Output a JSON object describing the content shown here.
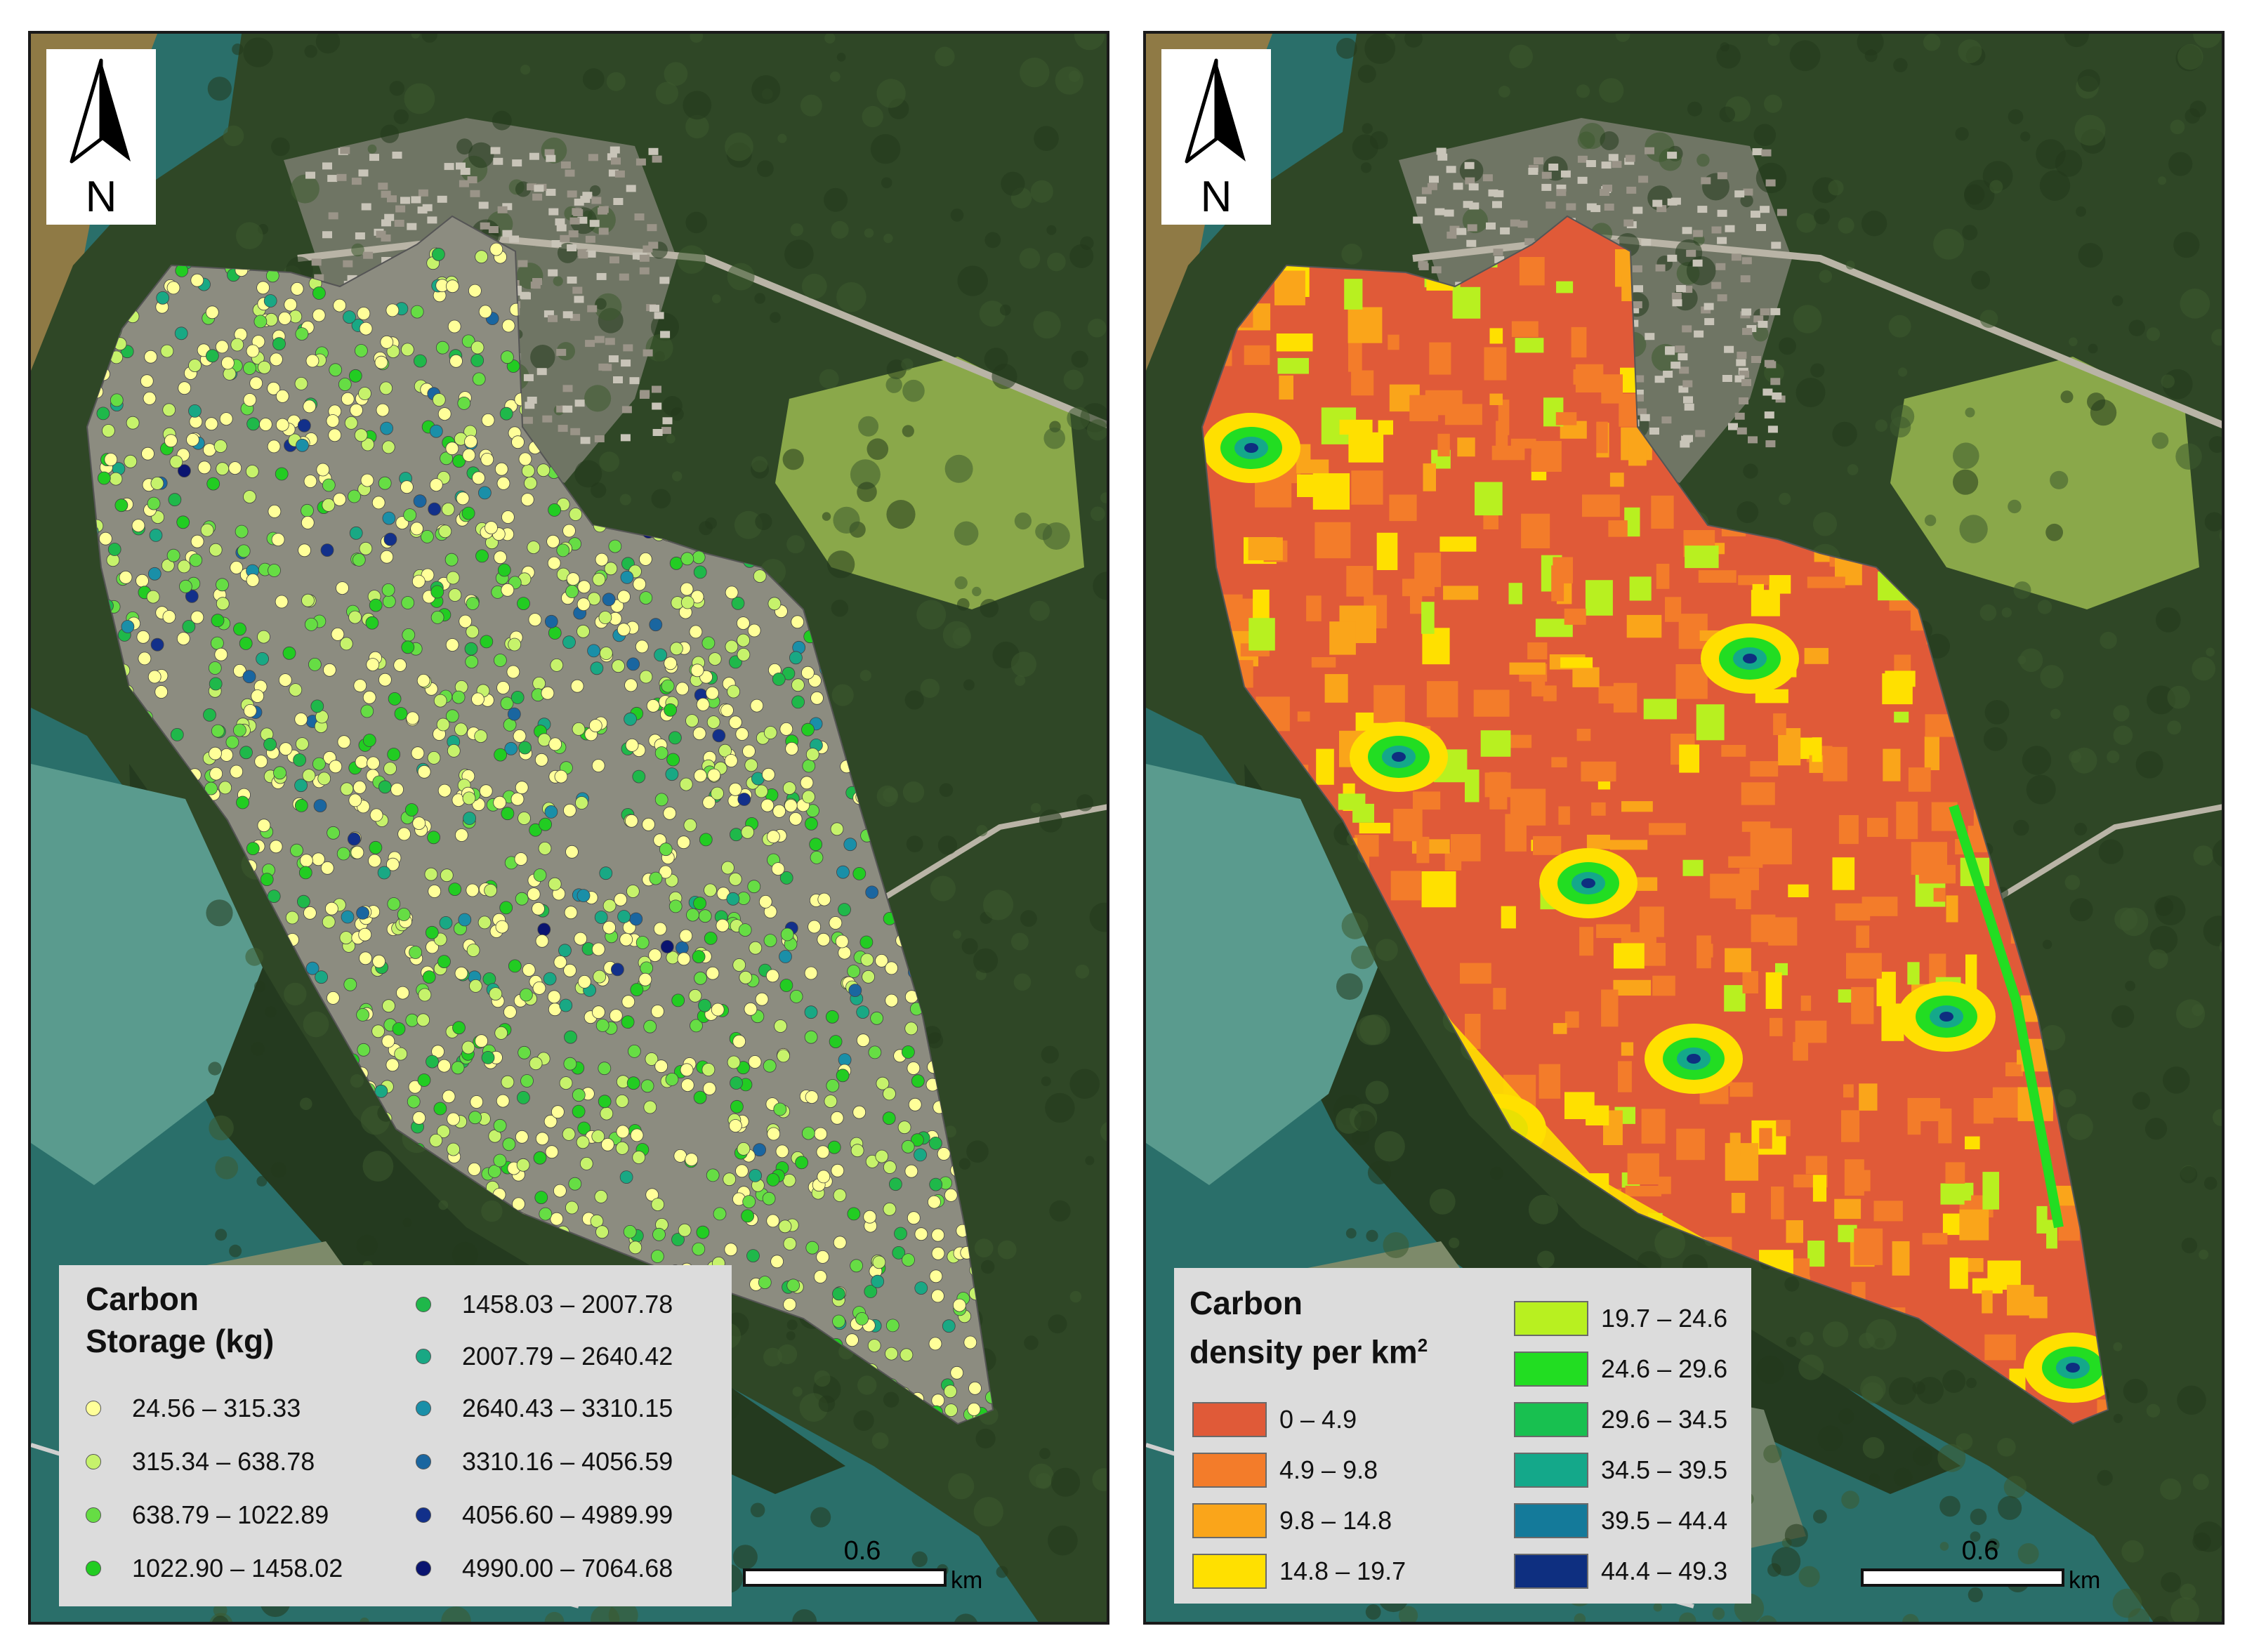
{
  "north_arrow": {
    "letter": "N"
  },
  "left_map": {
    "legend": {
      "title_line1": "Carbon",
      "title_line2": "Storage (kg)",
      "classes": [
        {
          "label": "24.56 – 315.33",
          "color": "#ffff99"
        },
        {
          "label": "315.34 – 638.78",
          "color": "#c6f26b"
        },
        {
          "label": "638.79 – 1022.89",
          "color": "#66dd44"
        },
        {
          "label": "1022.90 – 1458.02",
          "color": "#22cc22"
        },
        {
          "label": "1458.03 – 2007.78",
          "color": "#1fb84a"
        },
        {
          "label": "2007.79 – 2640.42",
          "color": "#19a884"
        },
        {
          "label": "2640.43 – 3310.15",
          "color": "#1a8fa8"
        },
        {
          "label": "3310.16 – 4056.59",
          "color": "#1a66a0"
        },
        {
          "label": "4056.60 – 4989.99",
          "color": "#12308a"
        },
        {
          "label": "4990.00 – 7064.68",
          "color": "#0a1470"
        }
      ]
    },
    "scalebar": {
      "value": "0.6",
      "unit": "km"
    }
  },
  "right_map": {
    "legend": {
      "title_line1": "Carbon",
      "title_line2": "density per km",
      "title_superscript": "2",
      "classes": [
        {
          "label": "0 – 4.9",
          "color": "#e05a38"
        },
        {
          "label": "4.9 – 9.8",
          "color": "#f37c2a"
        },
        {
          "label": "9.8 – 14.8",
          "color": "#faa51a"
        },
        {
          "label": "14.8 – 19.7",
          "color": "#ffe000"
        },
        {
          "label": "19.7 – 24.6",
          "color": "#b8f020"
        },
        {
          "label": "24.6 – 29.6",
          "color": "#22dd22"
        },
        {
          "label": "29.6 – 34.5",
          "color": "#18c050"
        },
        {
          "label": "34.5 – 39.5",
          "color": "#14a88a"
        },
        {
          "label": "39.5 – 44.4",
          "color": "#147a9a"
        },
        {
          "label": "44.4 – 49.3",
          "color": "#0e2f80"
        }
      ]
    },
    "scalebar": {
      "value": "0.6",
      "unit": "km"
    }
  },
  "colors": {
    "forest": "#2f4726",
    "water_deep": "#2a6f6a",
    "water_shallow": "#5a9b8e",
    "river_muddy": "#8f7a45",
    "urban": "#8c8c80",
    "grass": "#8aa84a"
  }
}
